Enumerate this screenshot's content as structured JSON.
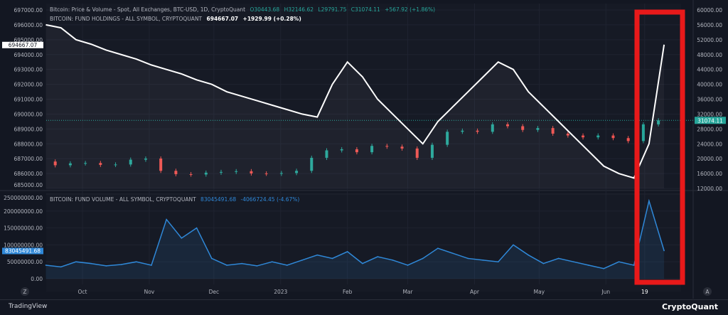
{
  "legend": {
    "price_title": "Bitcoin: Price & Volume - Spot, All Exchanges, BTC-USD, 1D, CryptoQuant",
    "ohlc": {
      "o": "O30443.68",
      "h": "H32146.62",
      "l": "L29791.75",
      "c": "C31074.11",
      "chg": "+567.92 (+1.86%)"
    },
    "holdings_title": "BITCOIN: FUND HOLDINGS - ALL SYMBOL, CRYPTOQUANT",
    "holdings_value": "694667.07",
    "holdings_chg": "+1929.99 (+0.28%)",
    "volume_title": "BITCOIN: FUND VOLUME - ALL SYMBOL, CRYPTOQUANT",
    "volume_value": "83045491.68",
    "volume_chg": "-4066724.45 (-4.67%)"
  },
  "footer": {
    "left_logo": "TradingView",
    "right_logo": "CryptoQuant",
    "left_corner": "Z",
    "right_corner": "A"
  },
  "colors": {
    "background": "#131722",
    "holdings": "#ffffff",
    "up": "#26a69a",
    "down": "#ef5350",
    "volume": "#2f88d8",
    "annotation": "#e8191a"
  },
  "chart_data": [
    {
      "type": "line",
      "panel": "top",
      "dates": [
        "2022-09-14",
        "2022-09-21",
        "2022-09-28",
        "2022-10-05",
        "2022-10-12",
        "2022-10-19",
        "2022-10-26",
        "2022-11-02",
        "2022-11-09",
        "2022-11-16",
        "2022-11-23",
        "2022-11-30",
        "2022-12-07",
        "2022-12-14",
        "2022-12-21",
        "2022-12-28",
        "2023-01-04",
        "2023-01-11",
        "2023-01-18",
        "2023-01-25",
        "2023-02-01",
        "2023-02-08",
        "2023-02-15",
        "2023-02-22",
        "2023-03-01",
        "2023-03-08",
        "2023-03-15",
        "2023-03-22",
        "2023-03-29",
        "2023-04-05",
        "2023-04-12",
        "2023-04-19",
        "2023-04-26",
        "2023-05-03",
        "2023-05-10",
        "2023-05-17",
        "2023-05-24",
        "2023-05-31",
        "2023-06-07",
        "2023-06-14",
        "2023-06-21",
        "2023-06-28"
      ],
      "holdings": [
        696000,
        695800,
        695000,
        694700,
        694300,
        694000,
        693700,
        693300,
        693000,
        692700,
        692300,
        692000,
        691500,
        691200,
        690900,
        690600,
        690300,
        690000,
        689800,
        692000,
        693500,
        692500,
        691000,
        690000,
        689000,
        688000,
        689500,
        690500,
        691500,
        692500,
        693500,
        693000,
        691500,
        690500,
        689500,
        688500,
        687500,
        686500,
        686000,
        685700,
        688000,
        694667.07
      ],
      "price_close": [
        20000,
        19000,
        19500,
        19600,
        19100,
        19200,
        20500,
        20800,
        17500,
        16600,
        16500,
        17000,
        17200,
        17400,
        16800,
        16700,
        16900,
        17500,
        21000,
        23000,
        23300,
        22500,
        24200,
        24000,
        23500,
        21000,
        24500,
        28000,
        28300,
        28000,
        30000,
        29500,
        28500,
        29000,
        27500,
        27000,
        26500,
        27000,
        26300,
        25500,
        30000,
        31074.11
      ],
      "left_axis": {
        "range": [
          685000,
          697000
        ],
        "ticks": [
          "697000.00",
          "696000.00",
          "695000.00",
          "694000.00",
          "693000.00",
          "692000.00",
          "691000.00",
          "690000.00",
          "689000.00",
          "688000.00",
          "687000.00",
          "686000.00",
          "685000.00"
        ],
        "marker": "694667.07"
      },
      "right_axis": {
        "range": [
          12000,
          60000
        ],
        "ticks": [
          "60000.00",
          "56000.00",
          "52000.00",
          "48000.00",
          "44000.00",
          "40000.00",
          "36000.00",
          "32000.00",
          "28000.00",
          "24000.00",
          "20000.00",
          "16000.00",
          "12000.00"
        ],
        "marker": "31074.11"
      }
    },
    {
      "type": "area",
      "panel": "bottom",
      "volume": [
        40000000,
        35000000,
        50000000,
        45000000,
        38000000,
        42000000,
        50000000,
        40000000,
        175000000,
        120000000,
        150000000,
        60000000,
        40000000,
        45000000,
        38000000,
        50000000,
        40000000,
        55000000,
        70000000,
        60000000,
        80000000,
        45000000,
        65000000,
        55000000,
        40000000,
        60000000,
        90000000,
        75000000,
        60000000,
        55000000,
        50000000,
        100000000,
        70000000,
        45000000,
        60000000,
        50000000,
        40000000,
        30000000,
        50000000,
        40000000,
        230000000,
        83045491.68
      ],
      "left_axis": {
        "range": [
          0,
          250000000
        ],
        "ticks": [
          "250000000.00",
          "200000000.00",
          "150000000.00",
          "100000000.00",
          "50000000.00",
          "0.00"
        ],
        "marker": "83045491.68"
      }
    }
  ],
  "x_axis": {
    "ticks": [
      [
        "Oct",
        "2022-10-01"
      ],
      [
        "Nov",
        "2022-11-01"
      ],
      [
        "Dec",
        "2022-12-01"
      ],
      [
        "2023",
        "2023-01-01"
      ],
      [
        "Feb",
        "2023-02-01"
      ],
      [
        "Mar",
        "2023-03-01"
      ],
      [
        "Apr",
        "2023-04-01"
      ],
      [
        "May",
        "2023-05-01"
      ],
      [
        "Jun",
        "2023-06-01"
      ],
      [
        "19",
        "2023-06-19"
      ]
    ]
  },
  "annotation": {
    "shape": "rectangle",
    "covers": [
      "2023-06-14",
      "2023-06-30"
    ]
  }
}
